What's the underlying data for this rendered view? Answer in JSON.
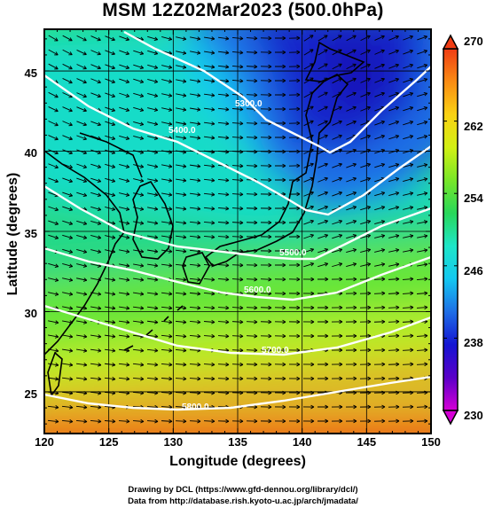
{
  "title": "MSM 12Z02Mar2023 (500.0hPa)",
  "xaxis": {
    "label": "Longitude (degrees)",
    "range": [
      120,
      150
    ],
    "ticks": [
      "120",
      "125",
      "130",
      "135",
      "140",
      "145",
      "150"
    ]
  },
  "yaxis": {
    "label": "Latitude  (degrees)",
    "range": [
      22.4,
      47.6
    ],
    "ticks": [
      "25",
      "30",
      "35",
      "40",
      "45"
    ]
  },
  "colorbar": {
    "range": [
      230,
      270
    ],
    "ticks": [
      "230",
      "238",
      "246",
      "254",
      "262",
      "270"
    ],
    "colors": [
      "#d600d6",
      "#5a00c8",
      "#1414d2",
      "#1e6ee6",
      "#14c8f0",
      "#1ee6c8",
      "#28d75a",
      "#78e628",
      "#d2f014",
      "#fad214",
      "#fa8c14",
      "#f03c14"
    ]
  },
  "contours": [
    {
      "label": "5300.0"
    },
    {
      "label": "5400.0"
    },
    {
      "label": "5500.0"
    },
    {
      "label": "5600.0"
    },
    {
      "label": "5700.0"
    },
    {
      "label": "5800.0"
    }
  ],
  "credits": [
    "Drawing by DCL (https://www.gfd-dennou.org/library/dcl/)",
    "Data from http://database.rish.kyoto-u.ac.jp/arch/jmadata/"
  ]
}
